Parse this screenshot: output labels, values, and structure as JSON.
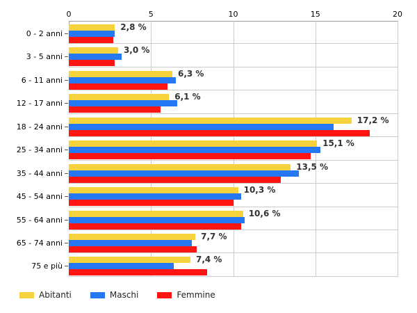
{
  "chart_data": {
    "type": "bar",
    "orientation": "horizontal",
    "title": "",
    "categories": [
      "0 - 2 anni",
      "3 - 5 anni",
      "6 - 11 anni",
      "12 - 17 anni",
      "18 - 24 anni",
      "25 - 34 anni",
      "35 - 44 anni",
      "45 - 54 anni",
      "55 - 64 anni",
      "65 - 74 anni",
      "75 e più"
    ],
    "series": [
      {
        "name": "Abitanti",
        "color": "#F6D23C",
        "values": [
          2.8,
          3.0,
          6.3,
          6.1,
          17.2,
          15.1,
          13.5,
          10.3,
          10.6,
          7.7,
          7.4
        ]
      },
      {
        "name": "Maschi",
        "color": "#2578F2",
        "values": [
          2.8,
          3.2,
          6.5,
          6.6,
          16.1,
          15.3,
          14.0,
          10.5,
          10.7,
          7.5,
          6.4
        ]
      },
      {
        "name": "Femmine",
        "color": "#FE1410",
        "values": [
          2.7,
          2.8,
          6.0,
          5.6,
          18.3,
          14.7,
          12.9,
          10.0,
          10.5,
          7.8,
          8.4
        ]
      }
    ],
    "bar_labels": [
      "2,8 %",
      "3,0 %",
      "6,3 %",
      "6,1 %",
      "17,2 %",
      "15,1 %",
      "13,5 %",
      "10,3 %",
      "10,6 %",
      "7,7 %",
      "7,4 %"
    ],
    "bar_labels_series": "Abitanti",
    "x_axis": {
      "position": "top",
      "ticks": [
        "0",
        "5",
        "10",
        "15",
        "20"
      ],
      "min": 0,
      "max": 20
    },
    "grid": true,
    "legend": {
      "position": "bottom-left",
      "entries": [
        "Abitanti",
        "Maschi",
        "Femmine"
      ]
    },
    "colors": {
      "grid": "#cccccc",
      "axis": "#999999",
      "tick_text": "#000000",
      "category_text": "#000000",
      "value_text": "#333333",
      "background": "#ffffff"
    }
  }
}
